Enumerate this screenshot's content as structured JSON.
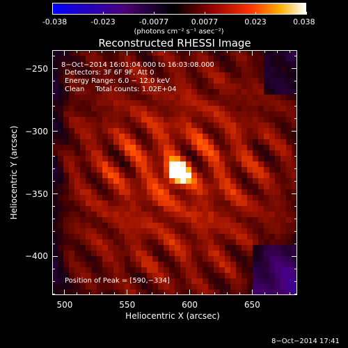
{
  "colorbar": {
    "tick_labels": [
      "-0.038",
      "-0.023",
      "-0.0077",
      "0.0077",
      "0.023",
      "0.038"
    ],
    "range": [
      -0.038,
      0.038
    ],
    "unit_label": "(photons cm⁻² s⁻¹ asec⁻²)",
    "colors": [
      "#0000ff",
      "#5a0080",
      "#000000",
      "#800000",
      "#ff4000",
      "#ffb000",
      "#ffffff"
    ]
  },
  "chart_data": {
    "type": "heatmap",
    "title": "Reconstructed RHESSI Image",
    "xlabel": "Heliocentric X (arcsec)",
    "ylabel": "Heliocentric Y (arcsec)",
    "xlim": [
      490,
      686
    ],
    "ylim": [
      -431,
      -235
    ],
    "x_ticks": [
      500,
      550,
      600,
      650
    ],
    "y_ticks": [
      -250,
      -300,
      -350,
      -400
    ],
    "x_tick_labels": [
      "500",
      "550",
      "600",
      "650"
    ],
    "y_tick_labels": [
      "−250",
      "−300",
      "−350",
      "−400"
    ],
    "peak": {
      "x": 590,
      "y": -334,
      "value": 0.038
    },
    "peak_label": "Position of Peak = [590,−334]",
    "annotations": [
      "8−Oct−2014 16:01:04.000 to 16:03:08.000",
      "Detectors: 3F 6F 9F, Att 0",
      "Energy Range: 6.0 − 12.0 keV",
      "Clean     Total counts: 1.02E+04"
    ],
    "grid": false
  },
  "footer": {
    "timestamp": "8−Oct−2014 17:41"
  }
}
